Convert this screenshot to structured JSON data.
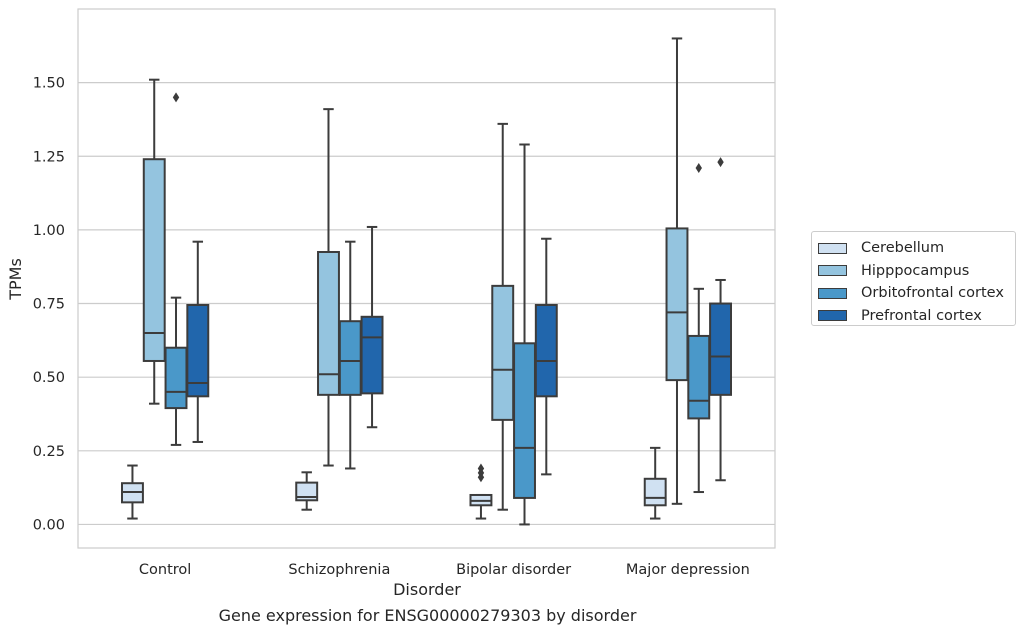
{
  "caption": "Gene expression for ENSG00000279303 by disorder",
  "chart_data": {
    "type": "box",
    "xlabel": "Disorder",
    "ylabel": "TPMs",
    "ylim": [
      -0.08,
      1.75
    ],
    "yticks": [
      "0.00",
      "0.25",
      "0.50",
      "0.75",
      "1.00",
      "1.25",
      "1.50"
    ],
    "grid": "horizontal",
    "legend_position": "right",
    "categories": [
      "Control",
      "Schizophrenia",
      "Bipolar disorder",
      "Major depression"
    ],
    "series": [
      {
        "name": "Cerebellum",
        "color": "#d0e1f2",
        "boxes": [
          {
            "whisker_low": 0.02,
            "q1": 0.075,
            "median": 0.11,
            "q3": 0.14,
            "whisker_high": 0.2,
            "outliers": []
          },
          {
            "whisker_low": 0.05,
            "q1": 0.082,
            "median": 0.093,
            "q3": 0.142,
            "whisker_high": 0.177,
            "outliers": []
          },
          {
            "whisker_low": 0.02,
            "q1": 0.065,
            "median": 0.08,
            "q3": 0.1,
            "whisker_high": 0.1,
            "outliers": [
              0.16,
              0.175,
              0.19
            ]
          },
          {
            "whisker_low": 0.02,
            "q1": 0.065,
            "median": 0.09,
            "q3": 0.155,
            "whisker_high": 0.26,
            "outliers": []
          }
        ]
      },
      {
        "name": "Hipppocampus",
        "color": "#94c4df",
        "boxes": [
          {
            "whisker_low": 0.41,
            "q1": 0.555,
            "median": 0.65,
            "q3": 1.24,
            "whisker_high": 1.51,
            "outliers": []
          },
          {
            "whisker_low": 0.2,
            "q1": 0.44,
            "median": 0.51,
            "q3": 0.925,
            "whisker_high": 1.41,
            "outliers": []
          },
          {
            "whisker_low": 0.05,
            "q1": 0.355,
            "median": 0.525,
            "q3": 0.81,
            "whisker_high": 1.36,
            "outliers": []
          },
          {
            "whisker_low": 0.07,
            "q1": 0.49,
            "median": 0.72,
            "q3": 1.005,
            "whisker_high": 1.65,
            "outliers": []
          }
        ]
      },
      {
        "name": "Orbitofrontal cortex",
        "color": "#4a98c9",
        "boxes": [
          {
            "whisker_low": 0.27,
            "q1": 0.395,
            "median": 0.45,
            "q3": 0.6,
            "whisker_high": 0.77,
            "outliers": [
              1.45
            ]
          },
          {
            "whisker_low": 0.19,
            "q1": 0.44,
            "median": 0.555,
            "q3": 0.69,
            "whisker_high": 0.96,
            "outliers": []
          },
          {
            "whisker_low": 0.0,
            "q1": 0.09,
            "median": 0.26,
            "q3": 0.615,
            "whisker_high": 1.29,
            "outliers": []
          },
          {
            "whisker_low": 0.11,
            "q1": 0.36,
            "median": 0.42,
            "q3": 0.64,
            "whisker_high": 0.8,
            "outliers": [
              1.21
            ]
          }
        ]
      },
      {
        "name": "Prefrontal cortex",
        "color": "#2166ac",
        "boxes": [
          {
            "whisker_low": 0.28,
            "q1": 0.435,
            "median": 0.48,
            "q3": 0.745,
            "whisker_high": 0.96,
            "outliers": []
          },
          {
            "whisker_low": 0.33,
            "q1": 0.445,
            "median": 0.635,
            "q3": 0.705,
            "whisker_high": 1.01,
            "outliers": []
          },
          {
            "whisker_low": 0.17,
            "q1": 0.435,
            "median": 0.555,
            "q3": 0.745,
            "whisker_high": 0.97,
            "outliers": []
          },
          {
            "whisker_low": 0.15,
            "q1": 0.44,
            "median": 0.57,
            "q3": 0.75,
            "whisker_high": 0.83,
            "outliers": [
              1.23
            ]
          }
        ]
      }
    ]
  }
}
